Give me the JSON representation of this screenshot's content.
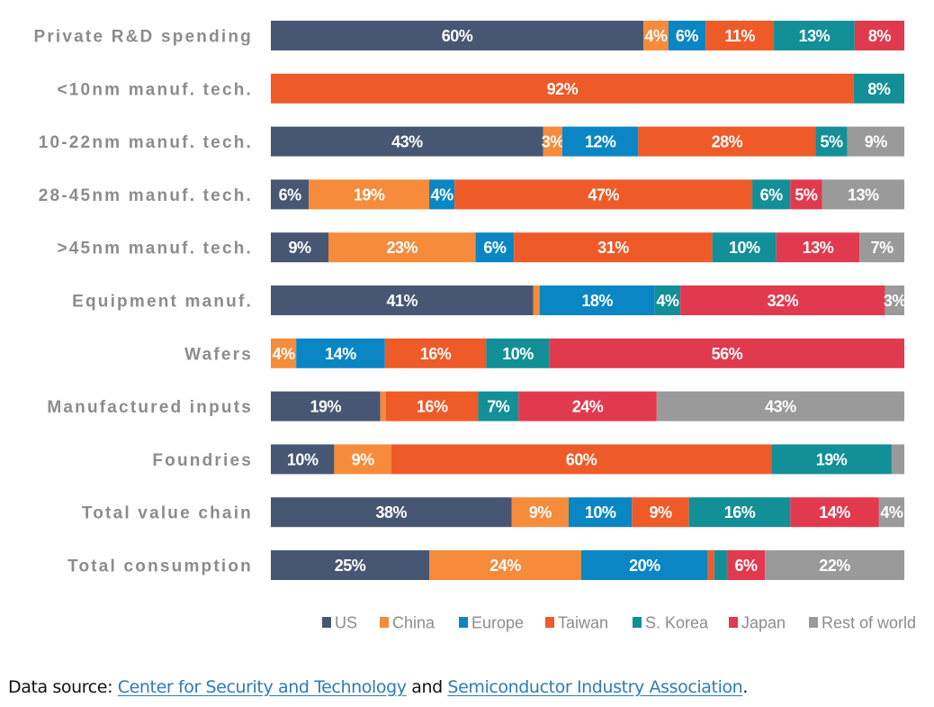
{
  "chart_data": {
    "type": "bar",
    "orientation": "horizontal",
    "stacked": true,
    "normalized": true,
    "title": "",
    "xlabel": "",
    "ylabel": "",
    "xlim": [
      0,
      100
    ],
    "grid": false,
    "legend_position": "bottom-right",
    "categories": [
      "Private R&D spending",
      "<10nm manuf. tech.",
      "10-22nm manuf. tech.",
      "28-45nm manuf. tech.",
      ">45nm manuf. tech.",
      "Equipment manuf.",
      "Wafers",
      "Manufactured inputs",
      "Foundries",
      "Total value chain",
      "Total consumption"
    ],
    "series": [
      {
        "name": "US",
        "color": "#475773",
        "values": [
          60,
          0,
          43,
          6,
          9,
          41,
          0,
          19,
          10,
          38,
          25
        ],
        "labels": [
          "60%",
          "",
          "43%",
          "6%",
          "9%",
          "41%",
          "",
          "19%",
          "10%",
          "38%",
          "25%"
        ]
      },
      {
        "name": "China",
        "color": "#f58b3b",
        "values": [
          4,
          0,
          3,
          19,
          23,
          1,
          4,
          1,
          9,
          9,
          24
        ],
        "labels": [
          "4%",
          "",
          "3%",
          "19%",
          "23%",
          "",
          "4%",
          "",
          "9%",
          "9%",
          "24%"
        ]
      },
      {
        "name": "Europe",
        "color": "#0b86c4",
        "values": [
          6,
          0,
          12,
          4,
          6,
          18,
          14,
          0,
          0,
          10,
          20
        ],
        "labels": [
          "6%",
          "",
          "12%",
          "4%",
          "6%",
          "18%",
          "14%",
          "",
          "",
          "10%",
          "20%"
        ]
      },
      {
        "name": "Taiwan",
        "color": "#ef5a29",
        "values": [
          11,
          92,
          28,
          47,
          31,
          0,
          16,
          16,
          60,
          9,
          1
        ],
        "labels": [
          "11%",
          "92%",
          "28%",
          "47%",
          "31%",
          "",
          "16%",
          "16%",
          "60%",
          "9%",
          ""
        ]
      },
      {
        "name": "S. Korea",
        "color": "#138f97",
        "values": [
          13,
          8,
          5,
          6,
          10,
          4,
          10,
          7,
          19,
          16,
          2
        ],
        "labels": [
          "13%",
          "8%",
          "5%",
          "6%",
          "10%",
          "4%",
          "10%",
          "7%",
          "19%",
          "16%",
          ""
        ]
      },
      {
        "name": "Japan",
        "color": "#e13a4e",
        "values": [
          8,
          0,
          0,
          5,
          13,
          32,
          56,
          24,
          0,
          14,
          6
        ],
        "labels": [
          "8%",
          "",
          "",
          "5%",
          "13%",
          "32%",
          "56%",
          "24%",
          "",
          "14%",
          "6%"
        ]
      },
      {
        "name": "Rest of world",
        "color": "#9a9a9a",
        "values": [
          0,
          0,
          9,
          13,
          7,
          3,
          0,
          43,
          2,
          4,
          22
        ],
        "labels": [
          "",
          "",
          "9%",
          "13%",
          "7%",
          "3%",
          "",
          "43%",
          "",
          "4%",
          "22%"
        ]
      }
    ]
  },
  "footer": {
    "prefix": "Data source: ",
    "link1": "Center for Security and Technology",
    "middle": " and ",
    "link2": "Semiconductor Industry Association",
    "suffix": "."
  }
}
